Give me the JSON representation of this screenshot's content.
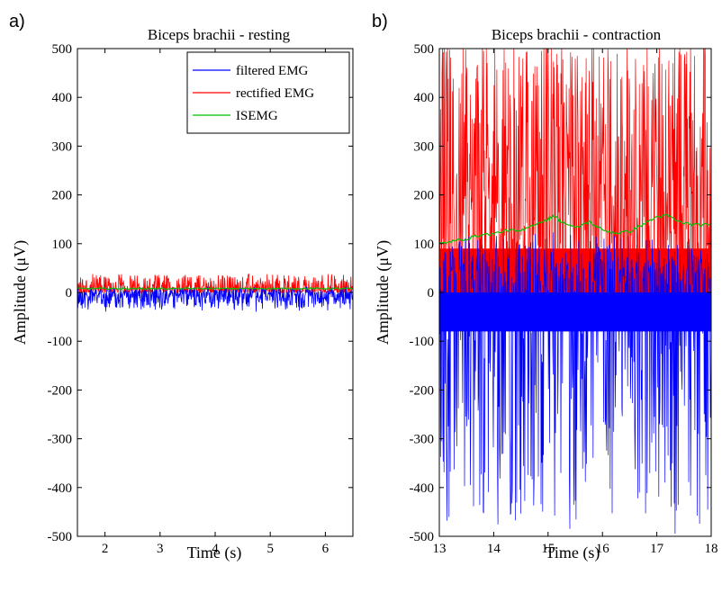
{
  "chart_data": [
    {
      "type": "line",
      "panel_label": "a)",
      "title": "Biceps brachii - resting",
      "xlabel": "Time (s)",
      "ylabel": "Amplitude (μV)",
      "xlim": [
        1.5,
        6.5
      ],
      "ylim": [
        -500,
        500
      ],
      "xticks": [
        "2",
        "3",
        "4",
        "5",
        "6"
      ],
      "yticks": [
        "500",
        "400",
        "300",
        "200",
        "100",
        "0",
        "-100",
        "-200",
        "-300",
        "-400",
        "-500"
      ],
      "legend": {
        "position": "top-right",
        "entries": [
          "filtered EMG",
          "rectified EMG",
          "ISEMG"
        ]
      },
      "series": [
        {
          "name": "filtered EMG",
          "color": "#0000ff",
          "approx_range": [
            -40,
            20
          ]
        },
        {
          "name": "rectified EMG",
          "color": "#ff0000",
          "approx_range": [
            0,
            38
          ]
        },
        {
          "name": "ISEMG",
          "color": "#00c000",
          "approx_level": 8
        }
      ]
    },
    {
      "type": "line",
      "panel_label": "b)",
      "title": "Biceps brachii - contraction",
      "xlabel": "Time (s)",
      "ylabel": "Amplitude (μV)",
      "xlim": [
        13,
        18
      ],
      "ylim": [
        -500,
        500
      ],
      "xticks": [
        "13",
        "14",
        "15",
        "16",
        "17",
        "18"
      ],
      "yticks": [
        "500",
        "400",
        "300",
        "200",
        "100",
        "0",
        "-100",
        "-200",
        "-300",
        "-400",
        "-500"
      ],
      "series": [
        {
          "name": "filtered EMG",
          "color": "#0000ff",
          "approx_range": [
            -500,
            450
          ]
        },
        {
          "name": "rectified EMG",
          "color": "#ff0000",
          "approx_range": [
            0,
            500
          ]
        },
        {
          "name": "ISEMG",
          "color": "#00c000",
          "x": [
            13.0,
            13.25,
            13.5,
            13.75,
            14.0,
            14.25,
            14.5,
            14.75,
            15.0,
            15.1,
            15.25,
            15.5,
            15.75,
            16.0,
            16.25,
            16.5,
            16.75,
            17.0,
            17.2,
            17.4,
            17.6,
            17.8,
            18.0
          ],
          "y": [
            100,
            105,
            110,
            118,
            120,
            128,
            125,
            140,
            150,
            158,
            145,
            132,
            145,
            128,
            122,
            125,
            140,
            155,
            158,
            145,
            140,
            138,
            140
          ]
        }
      ]
    }
  ]
}
